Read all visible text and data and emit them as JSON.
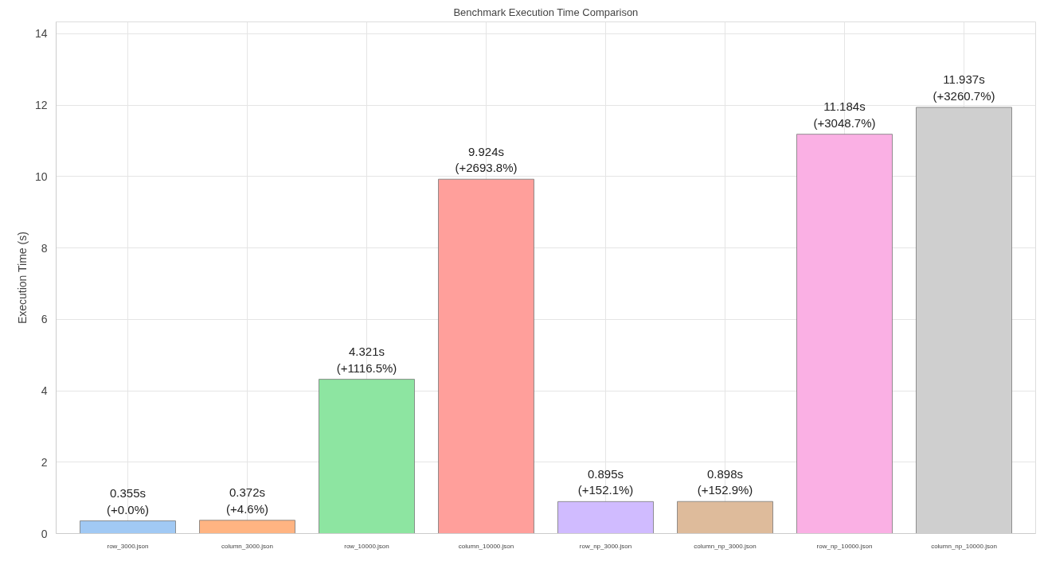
{
  "chart_data": {
    "type": "bar",
    "title": "Benchmark Execution Time Comparison",
    "ylabel": "Execution Time (s)",
    "categories": [
      "row_3000.json",
      "column_3000.json",
      "row_10000.json",
      "column_10000.json",
      "row_np_3000.json",
      "column_np_3000.json",
      "row_np_10000.json",
      "column_np_10000.json"
    ],
    "values": [
      0.355,
      0.372,
      4.321,
      9.924,
      0.895,
      0.898,
      11.184,
      11.937
    ],
    "colors": [
      "#a1c9f4",
      "#ffb482",
      "#8de5a1",
      "#ff9f9b",
      "#d0bbff",
      "#debb9b",
      "#fab0e4",
      "#cfcfcf"
    ],
    "value_labels": [
      "0.355s\n(+0.0%)",
      "0.372s\n(+4.6%)",
      "4.321s\n(+1116.5%)",
      "9.924s\n(+2693.8%)",
      "0.895s\n(+152.1%)",
      "0.898s\n(+152.9%)",
      "11.184s\n(+3048.7%)",
      "11.937s\n(+3260.7%)"
    ],
    "ylim": [
      0,
      14.33
    ],
    "yticks": [
      0,
      2,
      4,
      6,
      8,
      10,
      12,
      14
    ],
    "grid": true
  }
}
